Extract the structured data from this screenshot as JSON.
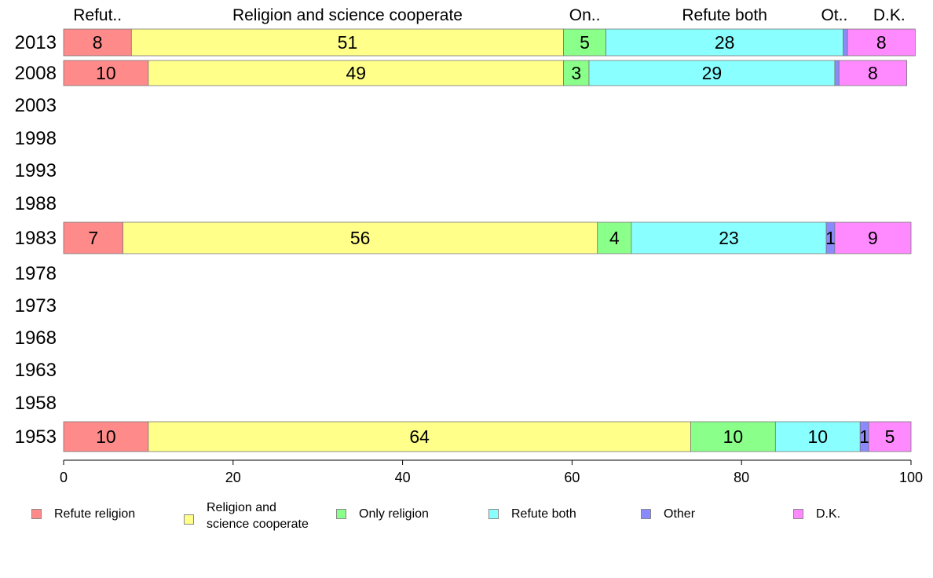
{
  "chart_data": {
    "type": "bar",
    "orientation": "horizontal",
    "stacked": true,
    "categories": [
      "2013",
      "2008",
      "2003",
      "1998",
      "1993",
      "1988",
      "1983",
      "1978",
      "1973",
      "1968",
      "1963",
      "1958",
      "1953"
    ],
    "series": [
      {
        "name": "Refute religion",
        "color": "#ff8a8a",
        "values": [
          8,
          10,
          null,
          null,
          null,
          null,
          7,
          null,
          null,
          null,
          null,
          null,
          10
        ]
      },
      {
        "name": "Religion and\nscience cooperate",
        "color": "#ffff8a",
        "values": [
          51,
          49,
          null,
          null,
          null,
          null,
          56,
          null,
          null,
          null,
          null,
          null,
          64
        ]
      },
      {
        "name": "Only religion",
        "color": "#8aff8a",
        "values": [
          5,
          3,
          null,
          null,
          null,
          null,
          4,
          null,
          null,
          null,
          null,
          null,
          10
        ]
      },
      {
        "name": "Refute both",
        "color": "#8affff",
        "values": [
          28,
          29,
          null,
          null,
          null,
          null,
          23,
          null,
          null,
          null,
          null,
          null,
          10
        ]
      },
      {
        "name": "Other",
        "color": "#8a8aff",
        "values": [
          0.5,
          0.5,
          null,
          null,
          null,
          null,
          1,
          null,
          null,
          null,
          null,
          null,
          1
        ]
      },
      {
        "name": "D.K.",
        "color": "#ff8aff",
        "values": [
          8,
          8,
          null,
          null,
          null,
          null,
          9,
          null,
          null,
          null,
          null,
          null,
          5
        ]
      }
    ],
    "data_labels": [
      [
        "8",
        "51",
        "5",
        "28",
        "",
        "8"
      ],
      [
        "10",
        "49",
        "3",
        "29",
        "",
        "8"
      ],
      null,
      null,
      null,
      null,
      [
        "7",
        "56",
        "4",
        "23",
        "1",
        "9"
      ],
      null,
      null,
      null,
      null,
      null,
      [
        "10",
        "64",
        "10",
        "10",
        "1",
        "5"
      ]
    ],
    "top_labels": [
      "Refut..",
      "Religion and science cooperate",
      "On..",
      "Refute both",
      "Ot..",
      "D.K."
    ],
    "xlim": [
      0,
      100
    ],
    "xticks": [
      0,
      20,
      40,
      60,
      80,
      100
    ],
    "legend_position": "bottom",
    "grid": false
  }
}
